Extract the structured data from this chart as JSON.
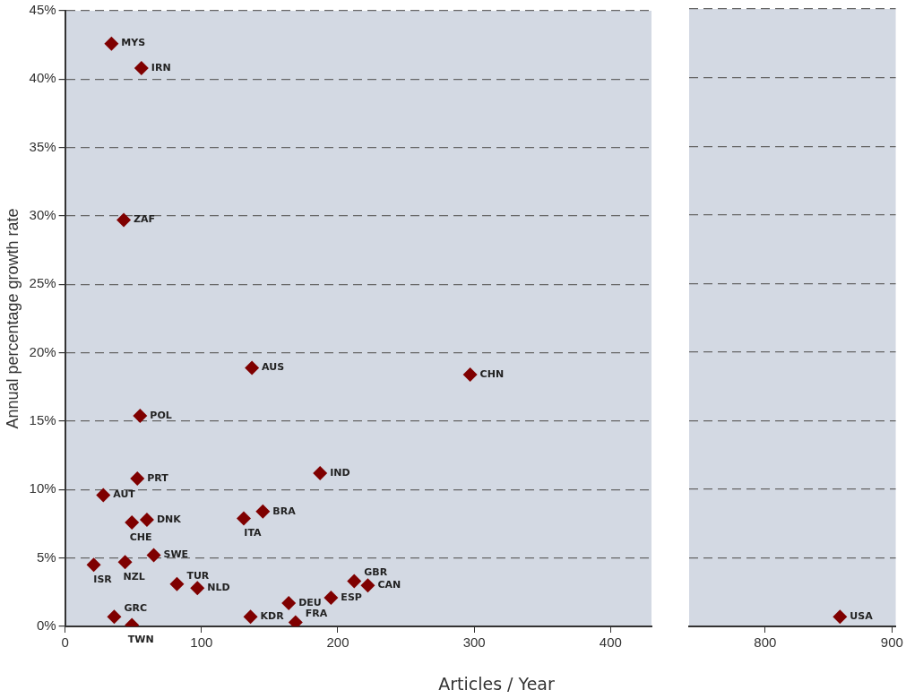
{
  "chart_data": [
    {
      "type": "scatter",
      "ylabel": "Annual percentage growth rate",
      "xlabel": "Articles / Year",
      "marker": "diamond",
      "grid": "y",
      "xlim": [
        0,
        430
      ],
      "xticks": [
        0,
        100,
        200,
        300,
        400
      ],
      "ylim": [
        0,
        45
      ],
      "yticks": [
        {
          "value": 0,
          "label": "0%"
        },
        {
          "value": 5,
          "label": "5%"
        },
        {
          "value": 10,
          "label": "10%"
        },
        {
          "value": 15,
          "label": "15%"
        },
        {
          "value": 20,
          "label": "20%"
        },
        {
          "value": 25,
          "label": "25%"
        },
        {
          "value": 30,
          "label": "30%"
        },
        {
          "value": 35,
          "label": "35%"
        },
        {
          "value": 40,
          "label": "40%"
        },
        {
          "value": 45,
          "label": "45%"
        }
      ],
      "series": [
        {
          "color": "#7f0000",
          "x": [
            34,
            56,
            43,
            137,
            297,
            55,
            187,
            53,
            28,
            145,
            131,
            60,
            49,
            65,
            44,
            21,
            212,
            82,
            222,
            97,
            195,
            164,
            36,
            136,
            169,
            49
          ],
          "values": [
            42.6,
            40.8,
            29.7,
            18.9,
            18.4,
            15.4,
            11.2,
            10.8,
            9.6,
            8.4,
            7.9,
            7.8,
            7.6,
            5.2,
            4.7,
            4.5,
            3.3,
            3.1,
            3.0,
            2.8,
            2.1,
            1.7,
            0.7,
            0.7,
            0.3,
            0.1
          ]
        }
      ],
      "annotations": [
        {
          "text": "MYS",
          "x": 34,
          "y": 42.6
        },
        {
          "text": "IRN",
          "x": 56,
          "y": 40.8
        },
        {
          "text": "ZAF",
          "x": 43,
          "y": 29.7
        },
        {
          "text": "AUS",
          "x": 137,
          "y": 18.9
        },
        {
          "text": "CHN",
          "x": 297,
          "y": 18.4
        },
        {
          "text": "POL",
          "x": 55,
          "y": 15.4
        },
        {
          "text": "IND",
          "x": 187,
          "y": 11.2
        },
        {
          "text": "PRT",
          "x": 53,
          "y": 10.8
        },
        {
          "text": "AUT",
          "x": 28,
          "y": 9.6
        },
        {
          "text": "BRA",
          "x": 145,
          "y": 8.4
        },
        {
          "text": "ITA",
          "x": 131,
          "y": 7.9
        },
        {
          "text": "DNK",
          "x": 60,
          "y": 7.8
        },
        {
          "text": "CHE",
          "x": 49,
          "y": 7.6
        },
        {
          "text": "SWE",
          "x": 65,
          "y": 5.2
        },
        {
          "text": "NZL",
          "x": 44,
          "y": 4.7
        },
        {
          "text": "ISR",
          "x": 21,
          "y": 4.5
        },
        {
          "text": "GBR",
          "x": 212,
          "y": 3.3
        },
        {
          "text": "TUR",
          "x": 82,
          "y": 3.1
        },
        {
          "text": "CAN",
          "x": 222,
          "y": 3.0
        },
        {
          "text": "NLD",
          "x": 97,
          "y": 2.8
        },
        {
          "text": "ESP",
          "x": 195,
          "y": 2.1
        },
        {
          "text": "DEU",
          "x": 164,
          "y": 1.7
        },
        {
          "text": "GRC",
          "x": 36,
          "y": 0.7
        },
        {
          "text": "KDR",
          "x": 136,
          "y": 0.7
        },
        {
          "text": "FRA",
          "x": 169,
          "y": 0.3
        },
        {
          "text": "TWN",
          "x": 49,
          "y": 0.1
        }
      ]
    },
    {
      "type": "scatter",
      "marker": "diamond",
      "grid": "y",
      "tick_labels": "x",
      "xlim": [
        740,
        903
      ],
      "xticks": [
        800,
        900
      ],
      "ylim": [
        0,
        45
      ],
      "yticks": [
        0,
        5,
        10,
        15,
        20,
        25,
        30,
        35,
        40,
        45
      ],
      "series": [
        {
          "color": "#7f0000",
          "x": [
            859
          ],
          "values": [
            0.7
          ]
        }
      ],
      "annotations": [
        {
          "text": "USA",
          "x": 859,
          "y": 0.7
        }
      ]
    }
  ]
}
